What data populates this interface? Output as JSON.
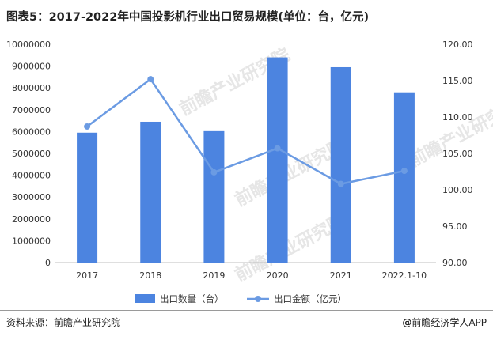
{
  "title": "图表5：2017-2022年中国投影机行业出口贸易规模(单位：台，亿元)",
  "footer": {
    "source": "资料来源：前瞻产业研究院",
    "brand_mark": "@",
    "brand": "前瞻经济学人APP"
  },
  "watermark_text": "前瞻产业研究院",
  "chart_data": {
    "type": "bar",
    "title": "图表5：2017-2022年中国投影机行业出口贸易规模(单位：台，亿元)",
    "categories": [
      "2017",
      "2018",
      "2019",
      "2020",
      "2021",
      "2022.1-10"
    ],
    "series": [
      {
        "name": "出口数量（台）",
        "type": "bar",
        "axis": "left",
        "color": "#4C84E0",
        "values": [
          5950000,
          6450000,
          6020000,
          9400000,
          8950000,
          7800000
        ]
      },
      {
        "name": "出口金额（亿元）",
        "type": "line",
        "axis": "right",
        "color": "#6B9BE3",
        "values": [
          108.7,
          115.2,
          102.4,
          105.7,
          100.8,
          102.6
        ]
      }
    ],
    "y_left": {
      "min": 0,
      "max": 10000000,
      "ticks": [
        "0",
        "1000000",
        "2000000",
        "3000000",
        "4000000",
        "5000000",
        "6000000",
        "7000000",
        "8000000",
        "9000000",
        "10000000"
      ]
    },
    "y_right": {
      "min": 90,
      "max": 120,
      "ticks": [
        "90.00",
        "95.00",
        "100.00",
        "105.00",
        "110.00",
        "115.00",
        "120.00"
      ]
    },
    "grid": false,
    "legend": "bottom-center"
  }
}
